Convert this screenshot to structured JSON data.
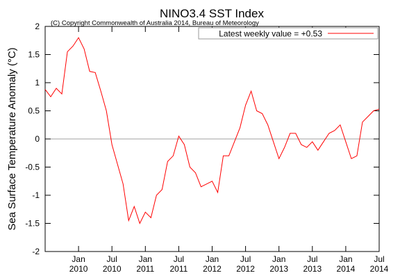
{
  "chart_data": {
    "type": "line",
    "title": "NINO3.4 SST Index",
    "subtitle": "(C) Copyright Commonwealth of Australia 2014, Bureau of Meteorology",
    "y_label": "Sea Surface Temperature Anomaly (°C)",
    "x": [
      "2009-07",
      "2009-08",
      "2009-09",
      "2009-10",
      "2009-11",
      "2009-12",
      "2010-01",
      "2010-02",
      "2010-03",
      "2010-04",
      "2010-05",
      "2010-06",
      "2010-07",
      "2010-08",
      "2010-09",
      "2010-10",
      "2010-11",
      "2010-12",
      "2011-01",
      "2011-02",
      "2011-03",
      "2011-04",
      "2011-05",
      "2011-06",
      "2011-07",
      "2011-08",
      "2011-09",
      "2011-10",
      "2011-11",
      "2011-12",
      "2012-01",
      "2012-02",
      "2012-03",
      "2012-04",
      "2012-05",
      "2012-06",
      "2012-07",
      "2012-08",
      "2012-09",
      "2012-10",
      "2012-11",
      "2012-12",
      "2013-01",
      "2013-02",
      "2013-03",
      "2013-04",
      "2013-05",
      "2013-06",
      "2013-07",
      "2013-08",
      "2013-09",
      "2013-10",
      "2013-11",
      "2013-12",
      "2014-01",
      "2014-02",
      "2014-03",
      "2014-04",
      "2014-05",
      "2014-06",
      "2014-07"
    ],
    "series": [
      {
        "name": "Latest weekly value = +0.53",
        "color": "#ff0000",
        "values": [
          0.88,
          0.75,
          0.9,
          0.8,
          1.55,
          1.65,
          1.8,
          1.6,
          1.2,
          1.18,
          0.85,
          0.5,
          -0.1,
          -0.45,
          -0.8,
          -1.45,
          -1.2,
          -1.5,
          -1.3,
          -1.4,
          -1.0,
          -0.9,
          -0.4,
          -0.3,
          0.05,
          -0.1,
          -0.5,
          -0.6,
          -0.85,
          -0.8,
          -0.75,
          -0.95,
          -0.3,
          -0.3,
          -0.05,
          0.2,
          0.6,
          0.85,
          0.5,
          0.45,
          0.25,
          -0.05,
          -0.35,
          -0.15,
          0.1,
          0.1,
          -0.1,
          -0.15,
          -0.05,
          -0.2,
          -0.05,
          0.1,
          0.15,
          0.25,
          -0.05,
          -0.35,
          -0.3,
          0.3,
          0.4,
          0.5,
          0.53
        ]
      }
    ],
    "xlim": [
      "2009-07",
      "2014-07"
    ],
    "xticks": [
      {
        "value": "2010-01",
        "label": "Jan 2010"
      },
      {
        "value": "2010-07",
        "label": "Jul 2010"
      },
      {
        "value": "2011-01",
        "label": "Jan 2011"
      },
      {
        "value": "2011-07",
        "label": "Jul 2011"
      },
      {
        "value": "2012-01",
        "label": "Jan 2012"
      },
      {
        "value": "2012-07",
        "label": "Jul 2012"
      },
      {
        "value": "2013-01",
        "label": "Jan 2013"
      },
      {
        "value": "2013-07",
        "label": "Jul 2013"
      },
      {
        "value": "2014-01",
        "label": "Jan 2014"
      },
      {
        "value": "2014-07",
        "label": "Jul 2014"
      }
    ],
    "ylim": [
      -2,
      2
    ],
    "yticks": [
      -2,
      -1.5,
      -1,
      -0.5,
      0,
      0.5,
      1,
      1.5,
      2
    ],
    "reference_line": 0,
    "grid": false,
    "legend": "upper right"
  }
}
